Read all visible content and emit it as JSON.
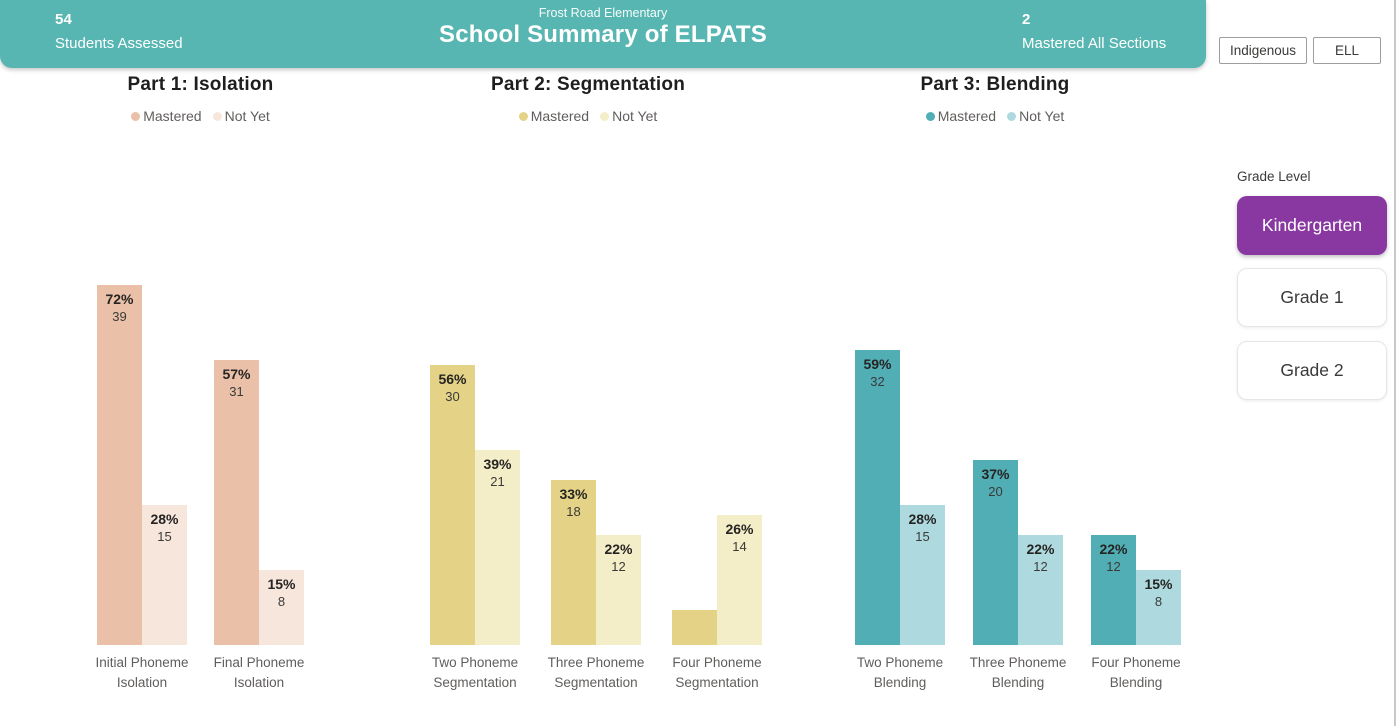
{
  "header": {
    "background_color": "#57b6b1",
    "students_assessed": {
      "value": "54",
      "label": "Students Assessed"
    },
    "school_name": "Frost Road Elementary",
    "title": "School Summary of ELPATS",
    "mastered_all": {
      "value": "2",
      "label": "Mastered All Sections"
    }
  },
  "filters": {
    "indigenous_label": "Indigenous",
    "ell_label": "ELL"
  },
  "grade_panel": {
    "label": "Grade Level",
    "selected_color": "#8838a0",
    "buttons": [
      {
        "label": "Kindergarten",
        "selected": true
      },
      {
        "label": "Grade 1",
        "selected": false
      },
      {
        "label": "Grade 2",
        "selected": false
      }
    ]
  },
  "chart_data": [
    {
      "type": "bar",
      "title": "Part 1: Isolation",
      "legend": [
        "Mastered",
        "Not Yet"
      ],
      "colors": {
        "mastered": "#eac0a8",
        "not_yet": "#f7e6dc"
      },
      "y_unit": "percent of 54 students",
      "ylim": [
        0,
        80
      ],
      "categories": [
        "Initial Phoneme Isolation",
        "Final Phoneme Isolation"
      ],
      "series": [
        {
          "name": "Mastered",
          "values_pct": [
            72,
            57
          ],
          "counts": [
            39,
            31
          ]
        },
        {
          "name": "Not Yet",
          "values_pct": [
            28,
            15
          ],
          "counts": [
            15,
            8
          ]
        }
      ]
    },
    {
      "type": "bar",
      "title": "Part 2: Segmentation",
      "legend": [
        "Mastered",
        "Not Yet"
      ],
      "colors": {
        "mastered": "#e4d386",
        "not_yet": "#f4eec8"
      },
      "y_unit": "percent of 54 students",
      "ylim": [
        0,
        80
      ],
      "categories": [
        "Two Phoneme Segmentation",
        "Three Phoneme Segmentation",
        "Four Phoneme Segmentation"
      ],
      "series": [
        {
          "name": "Mastered",
          "values_pct": [
            56,
            33,
            7
          ],
          "counts": [
            30,
            18,
            null
          ],
          "label_visible": [
            true,
            true,
            false
          ]
        },
        {
          "name": "Not Yet",
          "values_pct": [
            39,
            22,
            26
          ],
          "counts": [
            21,
            12,
            14
          ]
        }
      ]
    },
    {
      "type": "bar",
      "title": "Part 3: Blending",
      "legend": [
        "Mastered",
        "Not Yet"
      ],
      "colors": {
        "mastered": "#51aeb4",
        "not_yet": "#aedadf"
      },
      "y_unit": "percent of 54 students",
      "ylim": [
        0,
        80
      ],
      "categories": [
        "Two Phoneme Blending",
        "Three Phoneme Blending",
        "Four Phoneme Blending"
      ],
      "series": [
        {
          "name": "Mastered",
          "values_pct": [
            59,
            37,
            22
          ],
          "counts": [
            32,
            20,
            12
          ]
        },
        {
          "name": "Not Yet",
          "values_pct": [
            28,
            22,
            15
          ],
          "counts": [
            15,
            12,
            8
          ]
        }
      ]
    }
  ]
}
